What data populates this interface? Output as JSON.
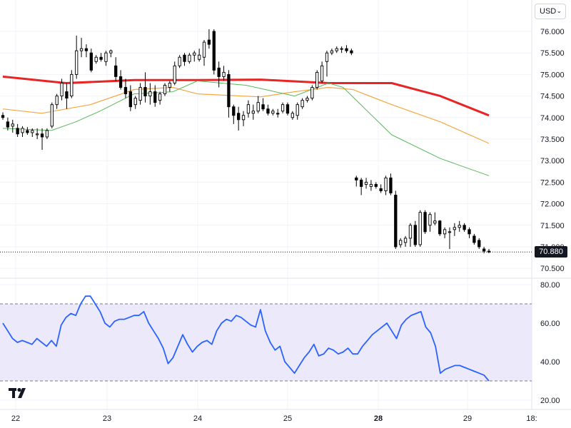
{
  "currency_selector": {
    "value": "USD",
    "icon": "chevron-down-icon"
  },
  "last_price_label": "70.880",
  "logo": {
    "icon": "tradingview-logo-icon"
  },
  "colors": {
    "ma_red": "#e82424",
    "ma_orange": "#f5a742",
    "ma_green": "#5cb85c",
    "rsi_line": "#2962ff",
    "rsi_band": "#ece9fb",
    "candle": "#000000"
  },
  "chart_data": [
    {
      "type": "candlestick",
      "panel": "price",
      "y_ticks": [
        "76.000",
        "75.500",
        "75.000",
        "74.500",
        "74.000",
        "73.500",
        "73.000",
        "72.500",
        "72.000",
        "71.500",
        "71.000",
        "70.500"
      ],
      "ylim": [
        70.3,
        76.4
      ],
      "last_price": 70.88,
      "ohlc": [
        [
          74.05,
          74.12,
          73.95,
          74.0
        ],
        [
          73.9,
          74.0,
          73.7,
          73.78
        ],
        [
          73.8,
          73.95,
          73.65,
          73.85
        ],
        [
          73.75,
          73.85,
          73.55,
          73.62
        ],
        [
          73.65,
          73.8,
          73.55,
          73.75
        ],
        [
          73.7,
          73.78,
          73.6,
          73.65
        ],
        [
          73.65,
          73.75,
          73.55,
          73.7
        ],
        [
          73.6,
          73.75,
          73.5,
          73.62
        ],
        [
          73.62,
          73.75,
          73.25,
          73.55
        ],
        [
          73.55,
          73.75,
          73.5,
          73.7
        ],
        [
          73.8,
          74.35,
          73.75,
          74.3
        ],
        [
          74.3,
          74.55,
          74.2,
          74.5
        ],
        [
          74.5,
          74.9,
          74.4,
          74.8
        ],
        [
          74.6,
          74.8,
          74.2,
          74.45
        ],
        [
          74.5,
          75.1,
          74.45,
          75.0
        ],
        [
          75.0,
          75.9,
          74.9,
          75.55
        ],
        [
          75.55,
          75.85,
          75.4,
          75.6
        ],
        [
          75.6,
          75.7,
          75.4,
          75.55
        ],
        [
          75.5,
          75.6,
          75.05,
          75.1
        ],
        [
          75.3,
          75.45,
          75.25,
          75.4
        ],
        [
          75.4,
          75.5,
          75.3,
          75.35
        ],
        [
          75.3,
          75.55,
          75.2,
          75.5
        ],
        [
          75.5,
          75.58,
          75.4,
          75.55
        ],
        [
          75.2,
          75.4,
          74.85,
          74.95
        ],
        [
          74.95,
          75.1,
          74.65,
          74.7
        ],
        [
          74.7,
          74.9,
          74.45,
          74.55
        ],
        [
          74.6,
          74.75,
          74.15,
          74.25
        ],
        [
          74.3,
          74.5,
          74.2,
          74.45
        ],
        [
          74.4,
          74.8,
          74.3,
          74.7
        ],
        [
          74.7,
          75.05,
          74.35,
          74.5
        ],
        [
          74.5,
          74.8,
          74.3,
          74.6
        ],
        [
          74.6,
          74.75,
          74.25,
          74.35
        ],
        [
          74.4,
          74.6,
          74.3,
          74.55
        ],
        [
          74.55,
          74.8,
          74.5,
          74.75
        ],
        [
          74.7,
          74.85,
          74.6,
          74.8
        ],
        [
          74.8,
          75.3,
          74.75,
          75.2
        ],
        [
          75.2,
          75.45,
          75.15,
          75.4
        ],
        [
          75.45,
          75.5,
          75.2,
          75.3
        ],
        [
          75.3,
          75.5,
          75.25,
          75.45
        ],
        [
          75.45,
          75.55,
          75.3,
          75.5
        ],
        [
          75.35,
          75.6,
          75.3,
          75.45
        ],
        [
          75.4,
          75.8,
          75.2,
          75.75
        ],
        [
          75.8,
          76.05,
          75.6,
          75.7
        ],
        [
          76.0,
          76.05,
          75.0,
          75.1
        ],
        [
          75.15,
          75.3,
          74.7,
          74.95
        ],
        [
          74.95,
          75.2,
          74.85,
          75.05
        ],
        [
          75.0,
          75.1,
          74.0,
          74.25
        ],
        [
          74.25,
          74.3,
          73.85,
          74.05
        ],
        [
          74.1,
          74.25,
          73.7,
          73.95
        ],
        [
          73.95,
          74.15,
          73.8,
          74.05
        ],
        [
          74.1,
          74.4,
          74.0,
          74.3
        ],
        [
          74.1,
          74.3,
          73.95,
          74.15
        ],
        [
          74.15,
          74.5,
          74.1,
          74.35
        ],
        [
          74.3,
          74.45,
          74.15,
          74.2
        ],
        [
          74.2,
          74.3,
          74.05,
          74.1
        ],
        [
          74.1,
          74.2,
          74.05,
          74.15
        ],
        [
          74.1,
          74.2,
          74.0,
          74.08
        ],
        [
          74.15,
          74.35,
          74.1,
          74.3
        ],
        [
          74.3,
          74.35,
          74.05,
          74.1
        ],
        [
          74.0,
          74.15,
          73.95,
          74.1
        ],
        [
          74.05,
          74.35,
          73.95,
          74.3
        ],
        [
          74.25,
          74.45,
          74.2,
          74.4
        ],
        [
          74.4,
          74.5,
          74.35,
          74.45
        ],
        [
          74.45,
          74.75,
          74.4,
          74.7
        ],
        [
          74.7,
          75.1,
          74.65,
          75.05
        ],
        [
          74.85,
          75.3,
          74.8,
          75.2
        ],
        [
          75.3,
          75.55,
          74.95,
          75.5
        ],
        [
          75.5,
          75.6,
          75.45,
          75.55
        ],
        [
          75.55,
          75.65,
          75.5,
          75.6
        ],
        [
          75.6,
          75.65,
          75.5,
          75.6
        ],
        [
          75.6,
          75.68,
          75.5,
          75.55
        ],
        [
          75.55,
          75.6,
          75.45,
          75.5
        ],
        [
          72.6,
          72.65,
          72.4,
          72.55
        ],
        [
          72.55,
          72.6,
          72.2,
          72.4
        ],
        [
          72.45,
          72.6,
          72.35,
          72.5
        ],
        [
          72.4,
          72.55,
          72.3,
          72.45
        ],
        [
          72.45,
          72.5,
          72.35,
          72.4
        ],
        [
          72.35,
          72.45,
          72.25,
          72.3
        ],
        [
          72.3,
          72.65,
          72.2,
          72.6
        ],
        [
          72.6,
          72.7,
          72.2,
          72.25
        ],
        [
          72.2,
          72.3,
          70.95,
          71.0
        ],
        [
          71.05,
          71.2,
          70.98,
          71.15
        ],
        [
          71.1,
          71.25,
          71.0,
          71.2
        ],
        [
          71.2,
          71.55,
          71.0,
          71.5
        ],
        [
          71.5,
          71.6,
          71.0,
          71.05
        ],
        [
          71.05,
          71.85,
          71.0,
          71.8
        ],
        [
          71.8,
          71.85,
          71.3,
          71.35
        ],
        [
          71.5,
          71.8,
          71.35,
          71.75
        ],
        [
          71.55,
          71.8,
          71.5,
          71.6
        ],
        [
          71.6,
          71.62,
          71.25,
          71.3
        ],
        [
          71.3,
          71.45,
          71.2,
          71.4
        ],
        [
          71.35,
          71.45,
          70.95,
          71.35
        ],
        [
          71.4,
          71.55,
          71.25,
          71.45
        ],
        [
          71.45,
          71.6,
          71.35,
          71.5
        ],
        [
          71.5,
          71.55,
          71.35,
          71.4
        ],
        [
          71.4,
          71.45,
          71.2,
          71.3
        ],
        [
          71.25,
          71.3,
          71.05,
          71.1
        ],
        [
          71.15,
          71.2,
          70.95,
          71.0
        ],
        [
          70.95,
          71.0,
          70.85,
          70.9
        ],
        [
          70.9,
          70.95,
          70.85,
          70.88
        ]
      ],
      "series": [
        {
          "color": "#e82424",
          "x": [
            0,
            13,
            27,
            40,
            53,
            67,
            80,
            90,
            100
          ],
          "values": [
            74.95,
            74.8,
            74.87,
            74.87,
            74.88,
            74.8,
            74.8,
            74.5,
            74.05
          ]
        },
        {
          "color": "#f5a742",
          "x": [
            0,
            8,
            18,
            27,
            35,
            40,
            53,
            60,
            67,
            72,
            80,
            90,
            100
          ],
          "values": [
            74.2,
            74.1,
            74.3,
            74.65,
            74.7,
            74.55,
            74.48,
            74.6,
            74.7,
            74.65,
            74.3,
            73.9,
            73.4
          ]
        },
        {
          "color": "#5cb85c",
          "x": [
            0,
            10,
            15,
            20,
            27,
            35,
            40,
            50,
            60,
            67,
            70,
            80,
            90,
            100
          ],
          "values": [
            73.75,
            73.7,
            73.9,
            74.15,
            74.55,
            74.6,
            74.85,
            74.75,
            74.5,
            74.8,
            74.7,
            73.6,
            73.05,
            72.65
          ]
        }
      ]
    },
    {
      "type": "line",
      "panel": "rsi",
      "y_ticks": [
        "80.00",
        "60.00",
        "40.00",
        "20.00"
      ],
      "ylim": [
        18,
        82
      ],
      "band": [
        30,
        70
      ],
      "values": [
        60,
        56,
        52,
        50,
        51,
        50,
        49,
        52,
        50,
        48,
        51,
        48,
        59,
        63,
        65,
        64,
        70,
        74,
        74,
        70,
        66,
        60,
        58,
        61,
        62,
        62,
        63,
        64,
        64,
        66,
        60,
        56,
        52,
        47,
        39,
        42,
        48,
        54,
        49,
        45,
        48,
        50,
        51,
        49,
        56,
        60,
        62,
        61,
        64,
        63,
        61,
        59,
        58,
        67,
        56,
        50,
        46,
        48,
        40,
        37,
        34,
        38,
        42,
        45,
        49,
        43,
        44,
        47,
        46,
        44,
        45,
        47,
        44,
        44,
        48,
        51,
        54,
        56,
        58,
        60,
        56,
        52,
        59,
        62,
        64,
        65,
        66,
        58,
        55,
        48,
        34,
        36,
        37,
        38,
        38,
        37,
        36,
        35,
        34,
        33,
        30
      ]
    }
  ],
  "x_axis_labels": [
    "22",
    "23",
    "24",
    "25",
    "28",
    "29",
    "18:"
  ]
}
